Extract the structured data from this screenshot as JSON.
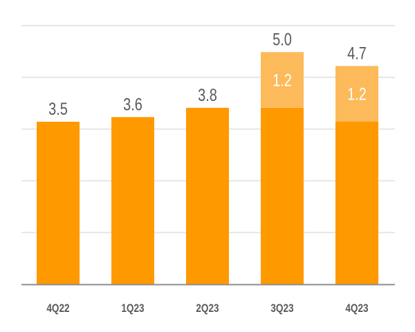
{
  "chart_data": {
    "type": "bar",
    "stacked": true,
    "categories": [
      "4Q22",
      "1Q23",
      "2Q23",
      "3Q23",
      "4Q23"
    ],
    "series": [
      {
        "values": [
          3.5,
          3.6,
          3.8,
          3.8,
          3.5
        ],
        "color": "#FF9900"
      },
      {
        "values": [
          0,
          0,
          0,
          1.2,
          1.2
        ],
        "color": "#FDBA5A"
      }
    ],
    "segment_labels": [
      "",
      "",
      "",
      "1.2",
      "1.2"
    ],
    "total_labels": [
      "3.5",
      "3.6",
      "3.8",
      "5.0",
      "4.7"
    ],
    "ylim": [
      0,
      5.57
    ],
    "grid": true,
    "gridline_count": 5,
    "gridline_color": "#E6E6E6",
    "axis_color": "#8C8C8C",
    "xlabel": "",
    "ylabel": "",
    "title": ""
  }
}
